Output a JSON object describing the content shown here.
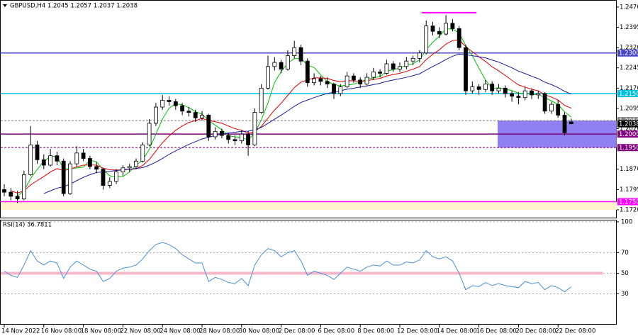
{
  "chart_data": [
    {
      "type": "candlestick",
      "title": "GBPUSD,H4 1.2045 1.2057 1.2037 1.2038",
      "ylim": [
        1.1691,
        1.2496
      ],
      "yticks": [
        {
          "value": 1.172,
          "label": "1.1720"
        },
        {
          "value": 1.1795,
          "label": "1.1795"
        },
        {
          "value": 1.187,
          "label": "1.1870"
        },
        {
          "value": 1.202,
          "label": "1.2020"
        },
        {
          "value": 1.2095,
          "label": "1.2095"
        },
        {
          "value": 1.217,
          "label": "1.2170"
        },
        {
          "value": 1.2245,
          "label": "1.2245"
        },
        {
          "value": 1.232,
          "label": "1.2320"
        },
        {
          "value": 1.2395,
          "label": "1.2395"
        },
        {
          "value": 1.247,
          "label": "1.2470"
        }
      ],
      "up_color": "#ffffff",
      "down_color": "#000000",
      "candles": [
        [
          1.1795,
          1.1815,
          1.177,
          1.1785
        ],
        [
          1.1785,
          1.18,
          1.1755,
          1.177
        ],
        [
          1.177,
          1.179,
          1.1745,
          1.176
        ],
        [
          1.176,
          1.1865,
          1.1755,
          1.185
        ],
        [
          1.185,
          1.203,
          1.1845,
          1.196
        ],
        [
          1.196,
          1.1975,
          1.189,
          1.1905
        ],
        [
          1.1905,
          1.1925,
          1.187,
          1.1885
        ],
        [
          1.1885,
          1.1945,
          1.188,
          1.192
        ],
        [
          1.192,
          1.1935,
          1.1885,
          1.19
        ],
        [
          1.19,
          1.191,
          1.177,
          1.178
        ],
        [
          1.178,
          1.19,
          1.1775,
          1.189
        ],
        [
          1.189,
          1.1955,
          1.188,
          1.193
        ],
        [
          1.193,
          1.1945,
          1.19,
          1.191
        ],
        [
          1.191,
          1.192,
          1.187,
          1.188
        ],
        [
          1.188,
          1.1895,
          1.1855,
          1.187
        ],
        [
          1.187,
          1.1875,
          1.1795,
          1.181
        ],
        [
          1.181,
          1.184,
          1.18,
          1.1825
        ],
        [
          1.1825,
          1.187,
          1.1815,
          1.186
        ],
        [
          1.186,
          1.1885,
          1.1845,
          1.1875
        ],
        [
          1.1875,
          1.189,
          1.186,
          1.188
        ],
        [
          1.188,
          1.191,
          1.187,
          1.19
        ],
        [
          1.19,
          1.197,
          1.1895,
          1.196
        ],
        [
          1.196,
          1.2055,
          1.1955,
          1.204
        ],
        [
          1.204,
          1.2115,
          1.203,
          1.21
        ],
        [
          1.21,
          1.2145,
          1.209,
          1.2125
        ],
        [
          1.2125,
          1.214,
          1.2105,
          1.212
        ],
        [
          1.212,
          1.213,
          1.209,
          1.2105
        ],
        [
          1.2105,
          1.2115,
          1.207,
          1.2085
        ],
        [
          1.2085,
          1.21,
          1.2065,
          1.208
        ],
        [
          1.208,
          1.209,
          1.2045,
          1.206
        ],
        [
          1.206,
          1.2085,
          1.205,
          1.207
        ],
        [
          1.207,
          1.2075,
          1.1975,
          1.199
        ],
        [
          1.199,
          1.2025,
          1.198,
          1.201
        ],
        [
          1.201,
          1.202,
          1.1985,
          1.1995
        ],
        [
          1.1995,
          1.2005,
          1.1965,
          1.198
        ],
        [
          1.198,
          1.1995,
          1.196,
          1.1975
        ],
        [
          1.1975,
          1.2015,
          1.1965,
          1.2
        ],
        [
          1.2,
          1.201,
          1.192,
          1.196
        ],
        [
          1.196,
          1.2095,
          1.1955,
          1.208
        ],
        [
          1.208,
          1.2185,
          1.2075,
          1.217
        ],
        [
          1.217,
          1.229,
          1.2165,
          1.225
        ],
        [
          1.225,
          1.2285,
          1.2235,
          1.2265
        ],
        [
          1.2265,
          1.2275,
          1.2225,
          1.224
        ],
        [
          1.224,
          1.231,
          1.2235,
          1.229
        ],
        [
          1.229,
          1.2345,
          1.228,
          1.232
        ],
        [
          1.232,
          1.233,
          1.2255,
          1.227
        ],
        [
          1.227,
          1.228,
          1.2175,
          1.219
        ],
        [
          1.219,
          1.2225,
          1.218,
          1.2205
        ],
        [
          1.2205,
          1.2215,
          1.218,
          1.2195
        ],
        [
          1.2195,
          1.221,
          1.217,
          1.2185
        ],
        [
          1.2185,
          1.219,
          1.213,
          1.215
        ],
        [
          1.215,
          1.2185,
          1.214,
          1.2175
        ],
        [
          1.2175,
          1.223,
          1.217,
          1.2215
        ],
        [
          1.2215,
          1.2225,
          1.219,
          1.22
        ],
        [
          1.22,
          1.221,
          1.217,
          1.2185
        ],
        [
          1.2185,
          1.2225,
          1.218,
          1.221
        ],
        [
          1.221,
          1.2245,
          1.22,
          1.223
        ],
        [
          1.223,
          1.224,
          1.221,
          1.2225
        ],
        [
          1.2225,
          1.2275,
          1.222,
          1.226
        ],
        [
          1.226,
          1.227,
          1.223,
          1.224
        ],
        [
          1.224,
          1.2265,
          1.223,
          1.225
        ],
        [
          1.225,
          1.2285,
          1.224,
          1.227
        ],
        [
          1.227,
          1.229,
          1.2255,
          1.228
        ],
        [
          1.228,
          1.231,
          1.2265,
          1.23
        ],
        [
          1.23,
          1.242,
          1.2295,
          1.24
        ],
        [
          1.24,
          1.2415,
          1.2365,
          1.238
        ],
        [
          1.238,
          1.2395,
          1.2355,
          1.237
        ],
        [
          1.237,
          1.244,
          1.2365,
          1.241
        ],
        [
          1.241,
          1.2425,
          1.238,
          1.239
        ],
        [
          1.239,
          1.24,
          1.231,
          1.232
        ],
        [
          1.232,
          1.233,
          1.2145,
          1.216
        ],
        [
          1.216,
          1.2195,
          1.215,
          1.2175
        ],
        [
          1.2175,
          1.2185,
          1.2145,
          1.2165
        ],
        [
          1.2165,
          1.22,
          1.2155,
          1.2185
        ],
        [
          1.2185,
          1.2195,
          1.2145,
          1.216
        ],
        [
          1.216,
          1.2185,
          1.215,
          1.217
        ],
        [
          1.217,
          1.218,
          1.2135,
          1.215
        ],
        [
          1.215,
          1.216,
          1.212,
          1.214
        ],
        [
          1.214,
          1.2155,
          1.211,
          1.2135
        ],
        [
          1.2135,
          1.2175,
          1.2125,
          1.216
        ],
        [
          1.216,
          1.217,
          1.213,
          1.2145
        ],
        [
          1.2145,
          1.216,
          1.213,
          1.215
        ],
        [
          1.215,
          1.2155,
          1.2075,
          1.2085
        ],
        [
          1.2085,
          1.212,
          1.2075,
          1.211
        ],
        [
          1.211,
          1.2125,
          1.206,
          1.207
        ],
        [
          1.207,
          1.208,
          1.1995,
          1.2005
        ],
        [
          1.2045,
          1.2057,
          1.2037,
          1.2038
        ]
      ],
      "lines": [
        {
          "color": "#00c000",
          "values": [
            null,
            null,
            1.1772,
            1.179,
            1.1836,
            1.1869,
            1.19,
            1.1917,
            1.1918,
            1.1871,
            1.1872,
            1.1875,
            1.1878,
            1.1903,
            1.1898,
            1.1868,
            1.1846,
            1.1841,
            1.1843,
            1.186,
            1.1885,
            1.1904,
            1.1944,
            1.2,
            1.2056,
            1.2096,
            1.2112,
            1.2109,
            1.2098,
            1.2083,
            1.2074,
            1.205,
            1.2033,
            1.2016,
            1.1994,
            1.199,
            1.1988,
            1.1978,
            1.2004,
            1.2053,
            1.2115,
            1.2191,
            1.2231,
            1.2262,
            1.2279,
            1.228,
            1.2255,
            1.2246,
            1.2219,
            1.2194,
            1.2184,
            1.2178,
            1.2181,
            1.2185,
            1.2193,
            1.2203,
            1.2208,
            1.2213,
            1.2232,
            1.2239,
            1.2244,
            1.2255,
            1.226,
            1.2275,
            1.2312,
            1.234,
            1.2362,
            1.239,
            1.2388,
            1.2374,
            1.2328,
            1.229,
            1.2244,
            1.22,
            1.2169,
            1.2171,
            1.2166,
            1.2161,
            1.2151,
            1.2151,
            1.2146,
            1.2147,
            1.2135,
            1.2123,
            1.211,
            1.2082,
            1.2063
          ]
        },
        {
          "color": "#e00000",
          "values": [
            null,
            1.179,
            1.1782,
            1.179,
            1.1812,
            1.1828,
            1.1843,
            1.186,
            1.1872,
            1.1865,
            1.187,
            1.1879,
            1.1885,
            1.1886,
            1.1885,
            1.1874,
            1.1868,
            1.1867,
            1.1868,
            1.1869,
            1.1872,
            1.1884,
            1.1906,
            1.1937,
            1.1968,
            1.1993,
            1.2014,
            1.203,
            1.2043,
            1.205,
            1.2058,
            1.205,
            1.2046,
            1.204,
            1.203,
            1.202,
            1.2014,
            1.2003,
            1.2009,
            1.2029,
            1.2059,
            1.2089,
            1.2114,
            1.2143,
            1.2172,
            1.2192,
            1.22,
            1.2208,
            1.2208,
            1.2206,
            1.2198,
            1.2194,
            1.2197,
            1.2197,
            1.2195,
            1.2197,
            1.2202,
            1.2206,
            1.2215,
            1.222,
            1.2225,
            1.2232,
            1.224,
            1.225,
            1.2275,
            1.2295,
            1.2312,
            1.2333,
            1.2346,
            1.2349,
            1.2323,
            1.2305,
            1.2286,
            1.2269,
            1.2249,
            1.2234,
            1.2217,
            1.2199,
            1.2182,
            1.2174,
            1.2166,
            1.216,
            1.2145,
            1.2137,
            1.2126,
            1.2106,
            1.2096
          ]
        },
        {
          "color": "#1a1aa0",
          "values": [
            null,
            null,
            null,
            null,
            null,
            null,
            1.178,
            1.179,
            1.18,
            1.1805,
            1.1815,
            1.1828,
            1.184,
            1.185,
            1.1858,
            1.186,
            1.1862,
            1.1865,
            1.1868,
            1.187,
            1.1873,
            1.1876,
            1.1885,
            1.1896,
            1.191,
            1.1925,
            1.1938,
            1.195,
            1.1962,
            1.1972,
            1.1982,
            1.1988,
            1.1995,
            1.2,
            1.2004,
            1.2007,
            1.201,
            1.2011,
            1.2015,
            1.2025,
            1.204,
            1.2055,
            1.207,
            1.2086,
            1.2103,
            1.2117,
            1.2126,
            1.2135,
            1.2143,
            1.215,
            1.2155,
            1.216,
            1.2166,
            1.217,
            1.2174,
            1.2178,
            1.2183,
            1.2188,
            1.2195,
            1.22,
            1.2205,
            1.221,
            1.2216,
            1.2223,
            1.2237,
            1.225,
            1.2262,
            1.2276,
            1.2288,
            1.2296,
            1.2293,
            1.229,
            1.2286,
            1.2282,
            1.2274,
            1.2266,
            1.2256,
            1.2245,
            1.2233,
            1.2224,
            1.2214,
            1.2205,
            1.2192,
            1.2183,
            1.2172,
            1.2158,
            1.2148
          ]
        }
      ],
      "levels": [
        {
          "value": 1.23,
          "label": "1.2300",
          "color": "#4646c8",
          "style": "solid"
        },
        {
          "value": 1.215,
          "label": "1.2150",
          "color": "#00c0e0",
          "style": "solid"
        },
        {
          "value": 1.205,
          "label": "1.2050",
          "color": "#808080",
          "style": "dashed"
        },
        {
          "value": 1.2038,
          "label": "1.2038",
          "color": "#000000",
          "style": "none"
        },
        {
          "value": 1.2,
          "label": "1.2000",
          "color": "#800080",
          "style": "solid"
        },
        {
          "value": 1.195,
          "label": "1.1950",
          "color": "#800080",
          "style": "dashed"
        },
        {
          "value": 1.175,
          "label": "1.1750",
          "color": "#ff00ff",
          "style": "solid"
        }
      ],
      "zones": [
        {
          "from": 1.195,
          "to": 1.205,
          "color": "#7b68ee"
        },
        {
          "from": 1.172,
          "to": 1.175,
          "color": "#fff2cc"
        }
      ],
      "marker_line": {
        "value": 1.2449,
        "color": "#ff00ff"
      }
    },
    {
      "type": "line",
      "title": "RSI(14) 36.7811",
      "categories": [
        "14 Nov 2022",
        null,
        null,
        null,
        null,
        null,
        "16 Nov 08:00",
        null,
        null,
        null,
        null,
        null,
        "18 Nov 08:00",
        null,
        null,
        null,
        null,
        null,
        "22 Nov 08:00",
        null,
        null,
        null,
        null,
        null,
        "24 Nov 08:00",
        null,
        null,
        null,
        null,
        null,
        "28 Nov 08:00",
        null,
        null,
        null,
        null,
        null,
        "30 Nov 08:00",
        null,
        null,
        null,
        null,
        null,
        "2 Dec 08:00",
        null,
        null,
        null,
        null,
        null,
        "6 Dec 08:00",
        null,
        null,
        null,
        null,
        null,
        "8 Dec 08:00",
        null,
        null,
        null,
        null,
        null,
        "12 Dec 08:00",
        null,
        null,
        null,
        null,
        null,
        "14 Dec 08:00",
        null,
        null,
        null,
        null,
        null,
        "16 Dec 08:00",
        null,
        null,
        null,
        null,
        null,
        "20 Dec 08:00",
        null,
        null,
        null,
        null,
        null,
        "22 Dec 08:00",
        null,
        null
      ],
      "values": [
        52,
        48,
        46,
        58,
        72,
        62,
        58,
        62,
        60,
        45,
        56,
        62,
        58,
        54,
        52,
        42,
        45,
        52,
        55,
        56,
        58,
        64,
        72,
        78,
        80,
        78,
        74,
        68,
        64,
        60,
        60,
        42,
        46,
        44,
        41,
        40,
        45,
        38,
        58,
        68,
        74,
        72,
        66,
        70,
        72,
        62,
        48,
        52,
        50,
        48,
        44,
        50,
        56,
        54,
        52,
        56,
        58,
        57,
        62,
        58,
        58,
        61,
        60,
        63,
        72,
        66,
        64,
        66,
        62,
        50,
        34,
        38,
        37,
        41,
        38,
        40,
        38,
        37,
        36,
        42,
        40,
        41,
        34,
        38,
        36,
        32,
        36.7811
      ],
      "color": "#4a90d9",
      "ylim": [
        0,
        100
      ],
      "yticks": [
        30,
        50,
        70,
        100
      ],
      "grid": true,
      "level": 50,
      "level_color": "#f6b8c8"
    }
  ]
}
